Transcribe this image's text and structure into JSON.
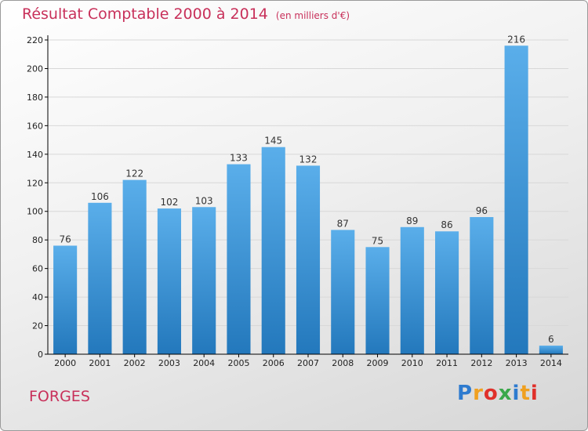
{
  "header": {
    "title": "Résultat Comptable 2000 à 2014",
    "subtitle": "(en milliers d'€)"
  },
  "footer": {
    "town": "FORGES",
    "brand_letters": [
      "P",
      "r",
      "o",
      "x",
      "i",
      "t",
      "i"
    ],
    "brand_colors": [
      "#2e7bcf",
      "#f0a020",
      "#e0302a",
      "#3aa84a",
      "#2e7bcf",
      "#f0a020",
      "#e0302a"
    ]
  },
  "colors": {
    "bar_top": "#5aaeea",
    "bar_bottom": "#2378bc",
    "axis": "#000000",
    "grid": "#d8d8d8",
    "title": "#c8305a"
  },
  "chart_data": {
    "type": "bar",
    "categories": [
      "2000",
      "2001",
      "2002",
      "2003",
      "2004",
      "2005",
      "2006",
      "2007",
      "2008",
      "2009",
      "2010",
      "2011",
      "2012",
      "2013",
      "2014"
    ],
    "values": [
      76,
      106,
      122,
      102,
      103,
      133,
      145,
      132,
      87,
      75,
      89,
      86,
      96,
      216,
      6
    ],
    "ylim": [
      0,
      220
    ],
    "yticks": [
      0,
      20,
      40,
      60,
      80,
      100,
      120,
      140,
      160,
      180,
      200,
      220
    ],
    "grid": "horizontal"
  }
}
